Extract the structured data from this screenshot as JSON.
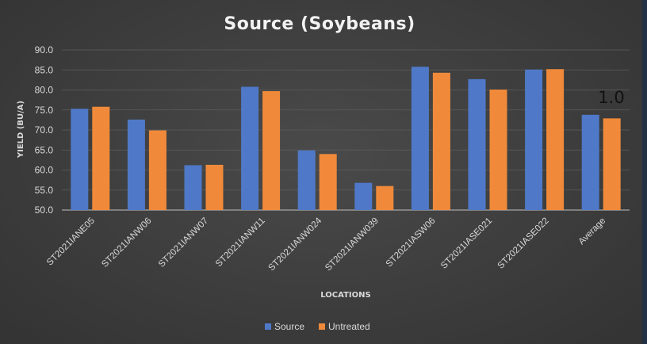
{
  "chart_data": {
    "type": "bar",
    "title": "Source (Soybeans)",
    "xlabel": "LOCATIONS",
    "ylabel": "YIELD (BU/A)",
    "ylim": [
      50,
      90
    ],
    "yticks": [
      "50.0",
      "55.0",
      "60.0",
      "65.0",
      "70.0",
      "75.0",
      "80.0",
      "85.0",
      "90.0"
    ],
    "grid": true,
    "legend_position": "bottom",
    "categories": [
      "ST2021IANE05",
      "ST2021IANW06",
      "ST2021IANW07",
      "ST2021IANW11",
      "ST2021IANW024",
      "ST2021IANW039",
      "ST2021IASW06",
      "ST2021IASE021",
      "ST2021IASE022",
      "Average"
    ],
    "series": [
      {
        "name": "Source",
        "color": "#4f79c8",
        "values": [
          75.3,
          72.6,
          61.2,
          80.8,
          64.9,
          56.8,
          85.8,
          82.7,
          85.1,
          73.8
        ]
      },
      {
        "name": "Untreated",
        "color": "#f08a3a",
        "values": [
          75.8,
          69.9,
          61.3,
          79.7,
          64.0,
          56.0,
          84.3,
          80.1,
          85.2,
          72.9
        ]
      }
    ],
    "annotation": "1.0"
  }
}
